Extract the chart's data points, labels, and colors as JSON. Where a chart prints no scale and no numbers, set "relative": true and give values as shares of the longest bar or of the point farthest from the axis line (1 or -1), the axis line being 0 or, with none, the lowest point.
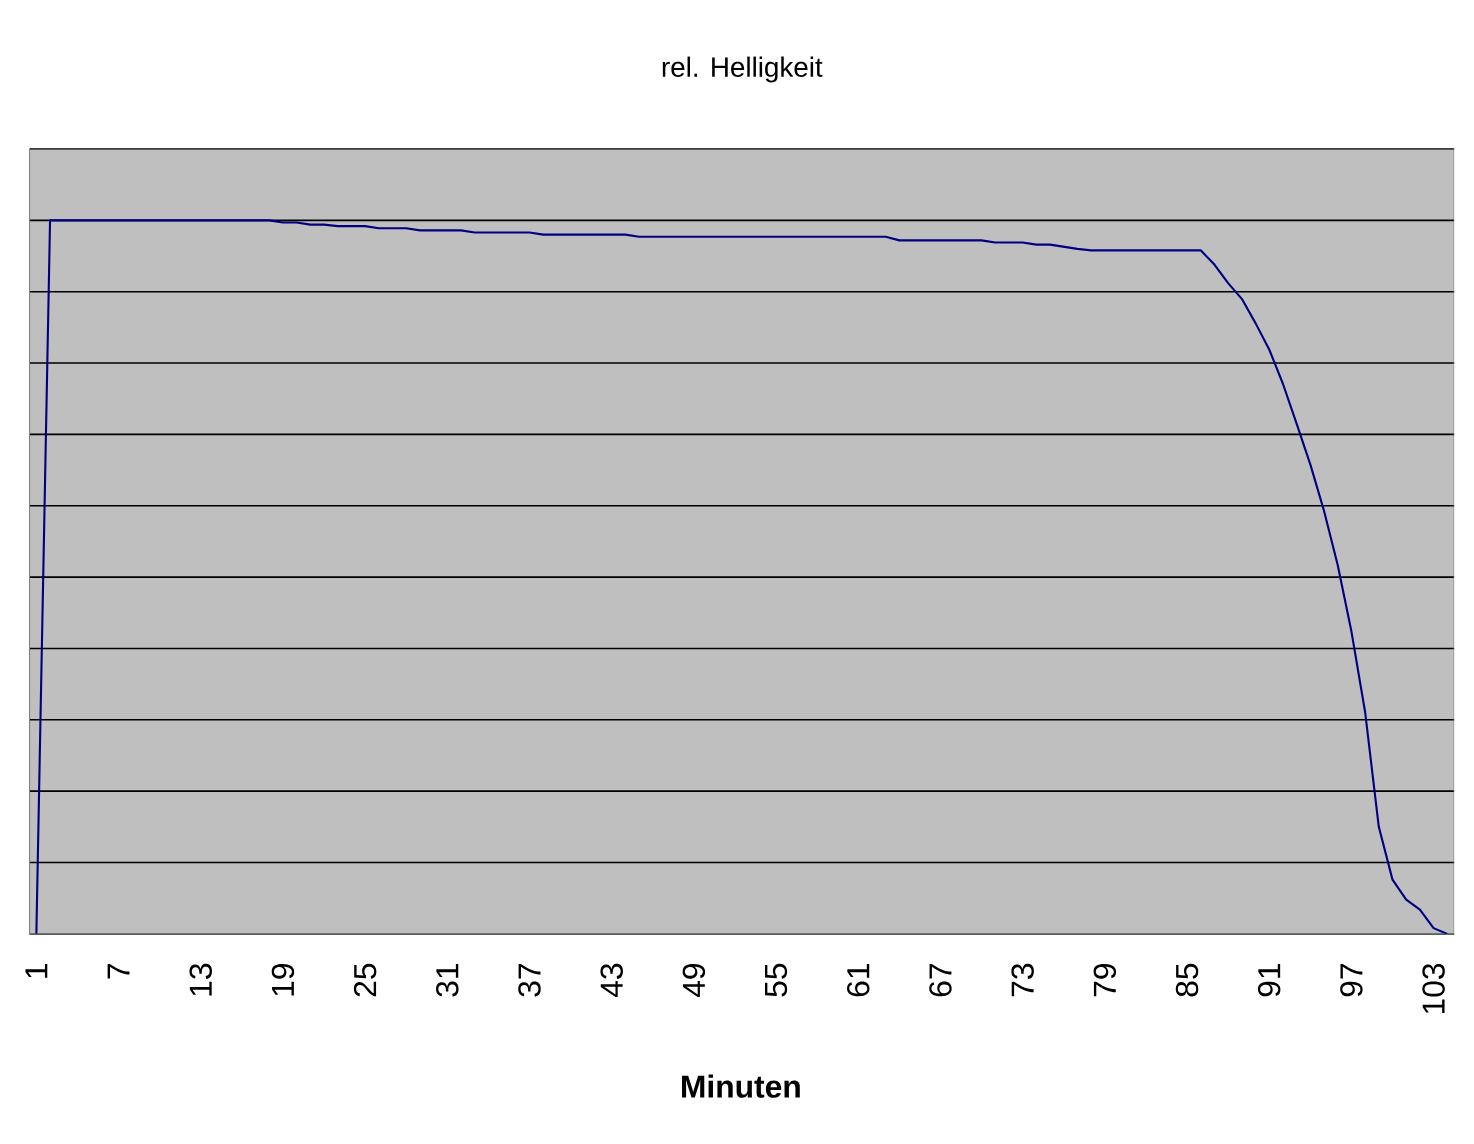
{
  "chart_data": {
    "type": "line",
    "title": "rel. Helligkeit",
    "xlabel": "Minuten",
    "relative": true,
    "grid": "y",
    "legend": false,
    "marker": "none",
    "line_style": "solid",
    "categories": [
      "1",
      null,
      null,
      null,
      null,
      null,
      "7",
      null,
      null,
      null,
      null,
      null,
      "13",
      null,
      null,
      null,
      null,
      null,
      "19",
      null,
      null,
      null,
      null,
      null,
      "25",
      null,
      null,
      null,
      null,
      null,
      "31",
      null,
      null,
      null,
      null,
      null,
      "37",
      null,
      null,
      null,
      null,
      null,
      "43",
      null,
      null,
      null,
      null,
      null,
      "49",
      null,
      null,
      null,
      null,
      null,
      "55",
      null,
      null,
      null,
      null,
      null,
      "61",
      null,
      null,
      null,
      null,
      null,
      "67",
      null,
      null,
      null,
      null,
      null,
      "73",
      null,
      null,
      null,
      null,
      null,
      "79",
      null,
      null,
      null,
      null,
      null,
      "85",
      null,
      null,
      null,
      null,
      null,
      "91",
      null,
      null,
      null,
      null,
      null,
      "97",
      null,
      null,
      null,
      null,
      null,
      "103",
      null
    ],
    "series": [
      {
        "color": "#000080",
        "values": [
          0,
          1.0,
          1.0,
          1.0,
          1.0,
          1.0,
          1.0,
          1.0,
          1.0,
          1.0,
          1.0,
          1.0,
          1.0,
          1.0,
          1.0,
          1.0,
          1.0,
          1.0,
          0.997,
          0.997,
          0.994,
          0.994,
          0.992,
          0.992,
          0.992,
          0.989,
          0.989,
          0.989,
          0.986,
          0.986,
          0.986,
          0.986,
          0.983,
          0.983,
          0.983,
          0.983,
          0.983,
          0.98,
          0.98,
          0.98,
          0.98,
          0.98,
          0.98,
          0.98,
          0.977,
          0.977,
          0.977,
          0.977,
          0.977,
          0.977,
          0.977,
          0.977,
          0.977,
          0.977,
          0.977,
          0.977,
          0.977,
          0.977,
          0.977,
          0.977,
          0.977,
          0.977,
          0.977,
          0.972,
          0.972,
          0.972,
          0.972,
          0.972,
          0.972,
          0.972,
          0.969,
          0.969,
          0.969,
          0.966,
          0.966,
          0.963,
          0.96,
          0.958,
          0.958,
          0.958,
          0.958,
          0.958,
          0.958,
          0.958,
          0.958,
          0.958,
          0.938,
          0.912,
          0.89,
          0.856,
          0.819,
          0.771,
          0.715,
          0.658,
          0.593,
          0.517,
          0.424,
          0.311,
          0.15,
          0.076,
          0.048,
          0.034,
          0.008,
          0
        ]
      }
    ]
  }
}
